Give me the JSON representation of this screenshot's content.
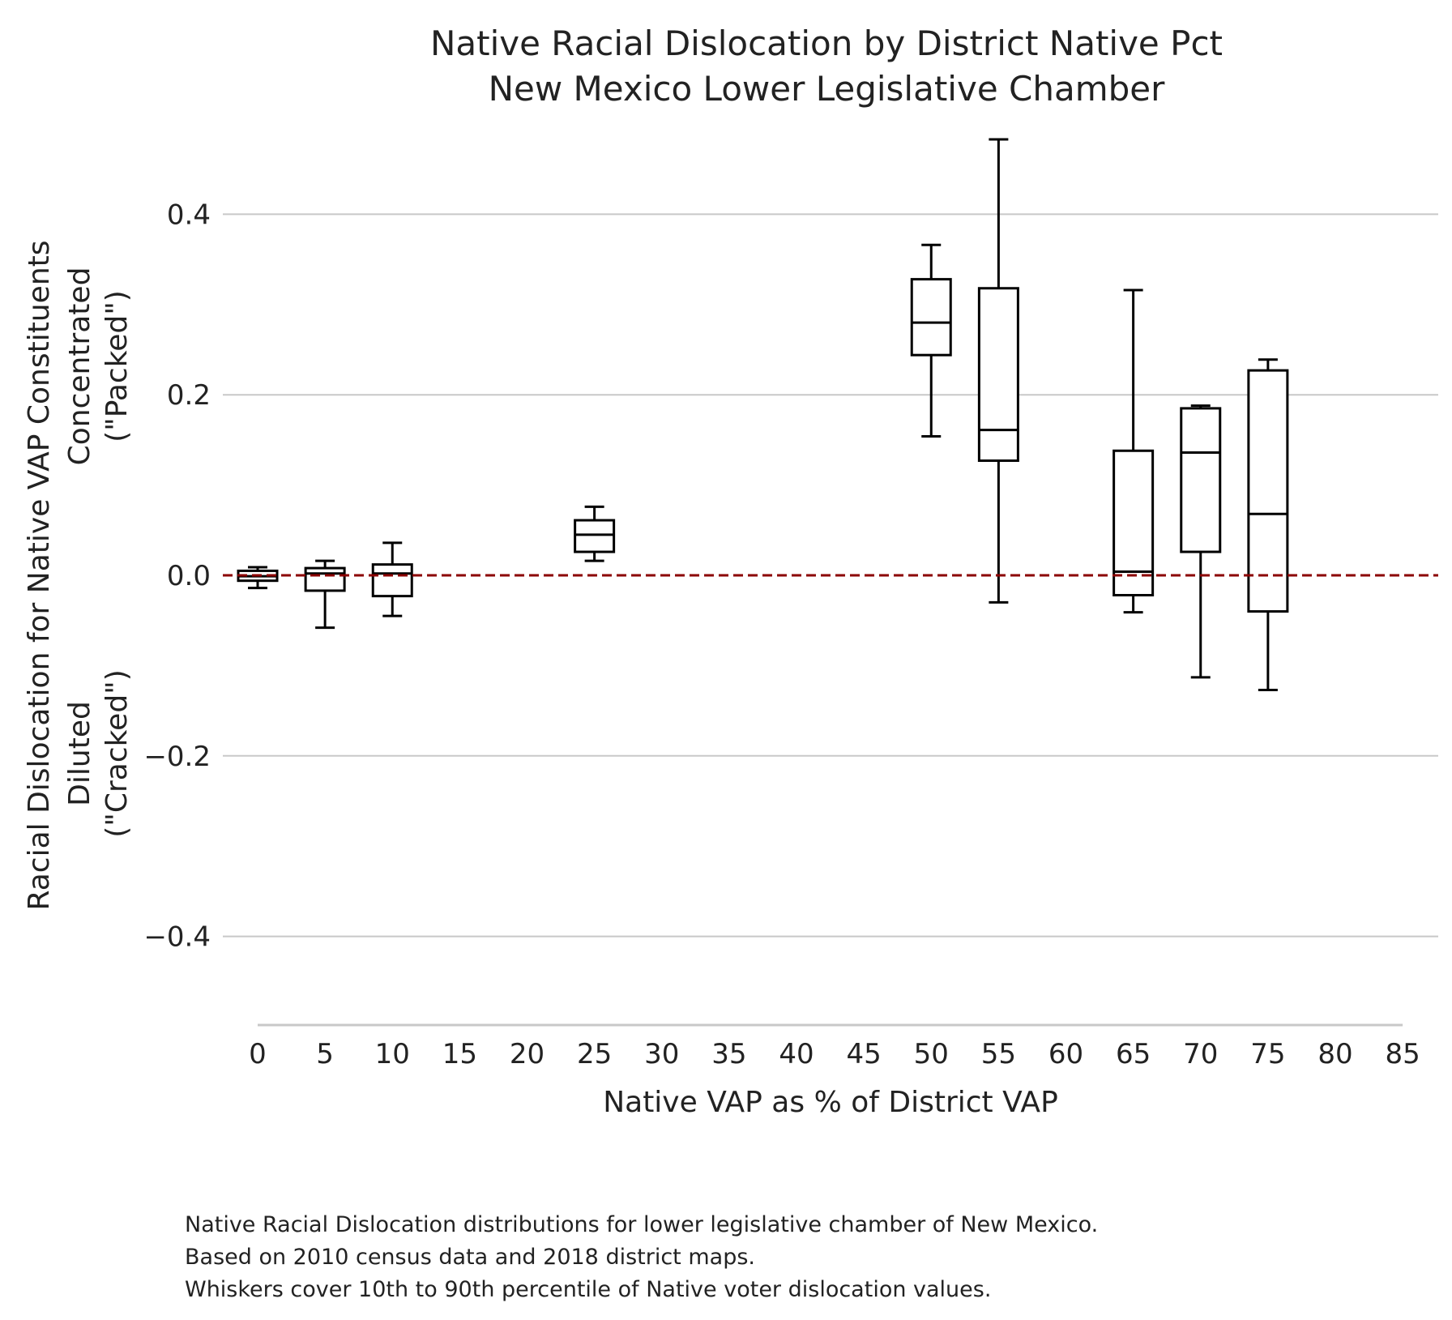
{
  "chart_data": {
    "type": "box",
    "title": [
      "Native Racial Dislocation by District Native Pct",
      "New Mexico Lower Legislative Chamber"
    ],
    "xlabel": "Native VAP as % of District VAP",
    "ylabel": [
      "Racial Dislocation for Native VAP Constituents",
      "Diluted",
      "(\"Cracked\")",
      "Concentrated",
      "(\"Packed\")"
    ],
    "x_ticks": [
      "0",
      "5",
      "10",
      "15",
      "20",
      "25",
      "30",
      "35",
      "40",
      "45",
      "50",
      "55",
      "60",
      "65",
      "70",
      "75",
      "80",
      "85"
    ],
    "y_ticks": [
      "−0.4",
      "−0.2",
      "0.0",
      "0.2",
      "0.4"
    ],
    "y_tick_values": [
      -0.4,
      -0.2,
      0.0,
      0.2,
      0.4
    ],
    "xlim": [
      0,
      85
    ],
    "ylim": [
      -0.5,
      0.49
    ],
    "grid": "horizontal",
    "reference_line": {
      "y": 0.0,
      "color": "#8b0000",
      "style": "dashed"
    },
    "boxes": [
      {
        "x": 0,
        "whisker_low": -0.014,
        "q1": -0.006,
        "median": -0.001,
        "q3": 0.005,
        "whisker_high": 0.009
      },
      {
        "x": 5,
        "whisker_low": -0.058,
        "q1": -0.017,
        "median": 0.002,
        "q3": 0.008,
        "whisker_high": 0.016
      },
      {
        "x": 10,
        "whisker_low": -0.045,
        "q1": -0.023,
        "median": 0.002,
        "q3": 0.012,
        "whisker_high": 0.036
      },
      {
        "x": 25,
        "whisker_low": 0.016,
        "q1": 0.026,
        "median": 0.045,
        "q3": 0.061,
        "whisker_high": 0.076
      },
      {
        "x": 50,
        "whisker_low": 0.154,
        "q1": 0.244,
        "median": 0.28,
        "q3": 0.328,
        "whisker_high": 0.366
      },
      {
        "x": 55,
        "whisker_low": -0.03,
        "q1": 0.127,
        "median": 0.161,
        "q3": 0.318,
        "whisker_high": 0.483
      },
      {
        "x": 65,
        "whisker_low": -0.041,
        "q1": -0.022,
        "median": 0.004,
        "q3": 0.138,
        "whisker_high": 0.316
      },
      {
        "x": 70,
        "whisker_low": -0.113,
        "q1": 0.026,
        "median": 0.136,
        "q3": 0.185,
        "whisker_high": 0.188
      },
      {
        "x": 75,
        "whisker_low": -0.127,
        "q1": -0.04,
        "median": 0.068,
        "q3": 0.227,
        "whisker_high": 0.239
      }
    ]
  },
  "caption": [
    "Native Racial Dislocation distributions for lower legislative chamber of New Mexico.",
    "Based on 2010 census data and 2018 district maps.",
    "Whiskers cover 10th to 90th percentile of Native voter dislocation values."
  ]
}
